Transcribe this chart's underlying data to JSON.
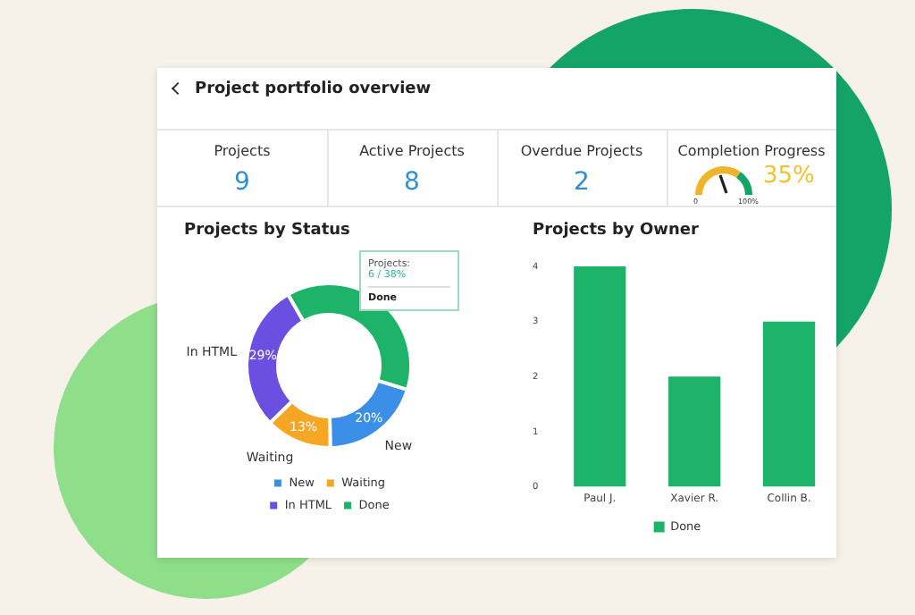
{
  "chart_data": [
    {
      "type": "other",
      "title": "Project portfolio overview",
      "annotations": [
        "Projects",
        "9",
        "Active Projects",
        "8",
        "Overdue Projects",
        "2",
        "Completion Progress",
        "35%",
        "0",
        "100%"
      ]
    },
    {
      "type": "donut",
      "title": "Projects by Status",
      "categories": [
        "New",
        "Waiting",
        "In HTML",
        "Done"
      ],
      "values": [
        20,
        13,
        29,
        38
      ],
      "colors": [
        "#3b8fe6",
        "#f5a623",
        "#6a4fe0",
        "#1db46a"
      ],
      "value_labels": [
        "20%",
        "13%",
        "29%",
        null
      ],
      "legend": "bottom",
      "annotations": [
        "Projects:",
        "6 / 38%",
        "Done"
      ]
    },
    {
      "type": "bar",
      "title": "Projects by Owner",
      "categories": [
        "Paul J.",
        "Xavier R.",
        "Collin B."
      ],
      "series": [
        {
          "name": "Done",
          "color": "#1db46a",
          "values": [
            4,
            2,
            3
          ]
        }
      ],
      "ylim": [
        0,
        4
      ],
      "yticks": [
        0,
        1,
        2,
        3,
        4
      ],
      "legend": "bottom"
    }
  ]
}
